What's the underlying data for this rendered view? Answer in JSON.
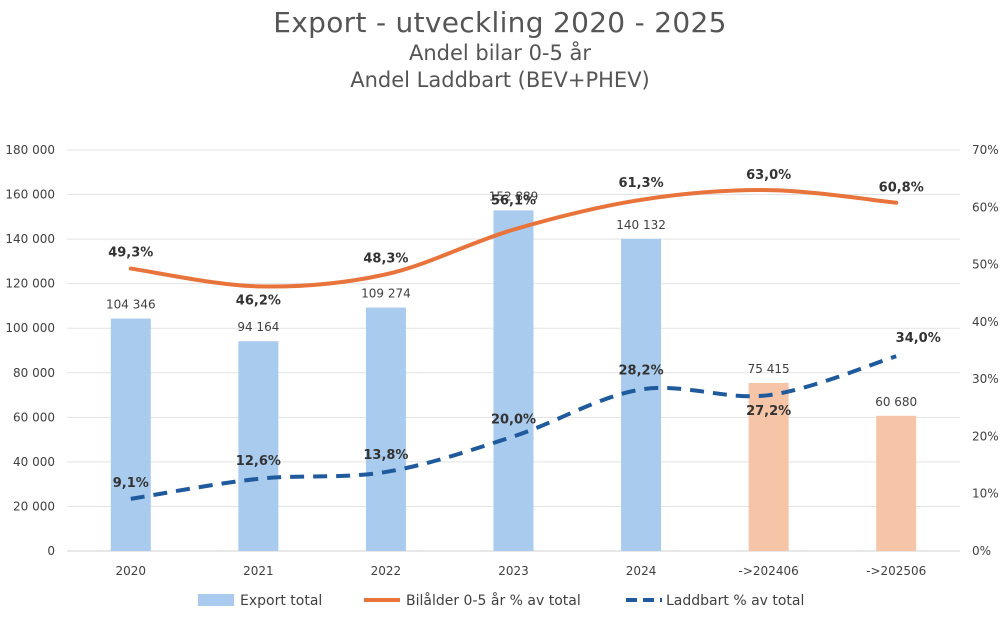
{
  "chart_data": {
    "type": "bar",
    "title": "Export - utveckling 2020 - 2025",
    "subtitles": [
      "Andel bilar 0-5 år",
      "Andel Laddbart (BEV+PHEV)"
    ],
    "categories": [
      "2020",
      "2021",
      "2022",
      "2023",
      "2024",
      "->202406",
      "->202506"
    ],
    "left_axis": {
      "min": 0,
      "max": 180000,
      "step": 20000,
      "tick_labels": [
        "0",
        "20 000",
        "40 000",
        "60 000",
        "80 000",
        "100 000",
        "120 000",
        "140 000",
        "160 000",
        "180 000"
      ]
    },
    "right_axis": {
      "min": 0,
      "max": 70,
      "step": 10,
      "tick_labels": [
        "0%",
        "10%",
        "20%",
        "30%",
        "40%",
        "50%",
        "60%",
        "70%"
      ]
    },
    "grid": true,
    "legend_position": "bottom",
    "bars": {
      "name": "Export total",
      "values": [
        104346,
        94164,
        109274,
        152889,
        140132,
        75415,
        60680
      ],
      "labels": [
        "104 346",
        "94 164",
        "109 274",
        "152 889",
        "140 132",
        "75 415",
        "60 680"
      ],
      "colors": [
        "#a9cbee",
        "#a9cbee",
        "#a9cbee",
        "#a9cbee",
        "#a9cbee",
        "#f6c4a6",
        "#f6c4a6"
      ]
    },
    "lines": [
      {
        "name": "Bilålder 0-5 år % av total",
        "axis": "right",
        "style": "solid",
        "color": "#e8743b",
        "categories": [
          "2020",
          "2021",
          "2022",
          "2023",
          "2024",
          "->202406",
          "->202506"
        ],
        "values": [
          49.3,
          46.2,
          48.3,
          56.1,
          61.3,
          63.0,
          60.8
        ],
        "labels": [
          "49,3%",
          "46,2%",
          "48,3%",
          "56,1%",
          "61,3%",
          "63,0%",
          "60,8%"
        ]
      },
      {
        "name": "Laddbart % av total",
        "axis": "right",
        "style": "dashed",
        "color": "#1f5b9c",
        "categories": [
          "2020",
          "2021",
          "2022",
          "2023",
          "2024",
          "->202406",
          "->202506"
        ],
        "values": [
          9.1,
          12.6,
          13.8,
          20.0,
          28.2,
          27.2,
          34.0
        ],
        "labels": [
          "9,1%",
          "12,6%",
          "13,8%",
          "20,0%",
          "28,2%",
          "27,2%",
          "34,0%"
        ]
      }
    ]
  }
}
